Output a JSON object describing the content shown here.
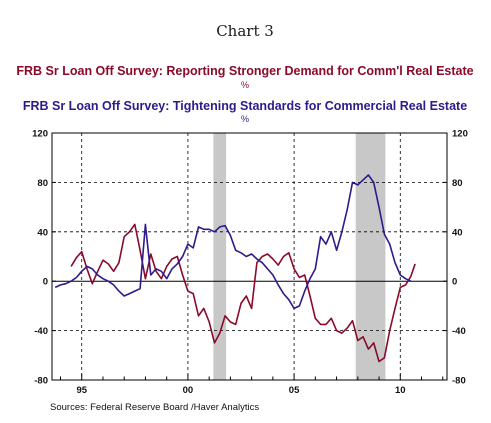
{
  "chart_data": {
    "type": "line",
    "title": "Chart 3",
    "source": "Sources:  Federal Reserve Board /Haver Analytics",
    "ylim": [
      -80,
      120
    ],
    "xlim": [
      1993.6,
      2012.2
    ],
    "yticks": [
      -80,
      -40,
      0,
      40,
      80,
      120
    ],
    "ytick_labels": [
      "-80",
      "-40",
      "0",
      "40",
      "80",
      "120"
    ],
    "xticks": [
      1995,
      2000,
      2005,
      2010
    ],
    "xtick_labels": [
      "95",
      "00",
      "05",
      "10"
    ],
    "grid": true,
    "zero_line": true,
    "recessions": [
      [
        2001.2,
        2001.8
      ],
      [
        2007.9,
        2009.3
      ]
    ],
    "colors": {
      "demand": "#8b0a2a",
      "standards": "#2e1a8c",
      "recession": "#c8c8c8",
      "grid": "#000000"
    },
    "series": [
      {
        "name": "FRB Sr Loan Off Survey: Reporting Stronger Demand for Comm'l Real Estate",
        "unit": "%",
        "x": [
          1994.5,
          1994.75,
          1995.0,
          1995.25,
          1995.5,
          1995.75,
          1996.0,
          1996.25,
          1996.5,
          1996.75,
          1997.0,
          1997.25,
          1997.5,
          1997.75,
          1998.0,
          1998.25,
          1998.5,
          1998.75,
          1999.0,
          1999.25,
          1999.5,
          1999.75,
          2000.0,
          2000.25,
          2000.5,
          2000.75,
          2001.0,
          2001.25,
          2001.5,
          2001.75,
          2002.0,
          2002.25,
          2002.5,
          2002.75,
          2003.0,
          2003.25,
          2003.5,
          2003.75,
          2004.0,
          2004.25,
          2004.5,
          2004.75,
          2005.0,
          2005.25,
          2005.5,
          2005.75,
          2006.0,
          2006.25,
          2006.5,
          2006.75,
          2007.0,
          2007.25,
          2007.5,
          2007.75,
          2008.0,
          2008.25,
          2008.5,
          2008.75,
          2009.0,
          2009.25,
          2009.5,
          2009.75,
          2010.0,
          2010.25
        ],
        "values": [
          12,
          19,
          24,
          10,
          -2,
          8,
          17,
          14,
          8,
          15,
          36,
          40,
          46,
          25,
          2,
          22,
          8,
          2,
          12,
          18,
          20,
          5,
          -8,
          -10,
          -28,
          -22,
          -33,
          -50,
          -42,
          -28,
          -33,
          -35,
          -18,
          -12,
          -22,
          15,
          20,
          22,
          18,
          13,
          20,
          23,
          10,
          3,
          5,
          -12,
          -30,
          -35,
          -35,
          -30,
          -40,
          -42,
          -38,
          -32,
          -48,
          -45,
          -55,
          -50,
          -65,
          -62,
          -40,
          -22,
          -5,
          -3
        ],
        "tail": [
          [
            2010.5,
            4
          ],
          [
            2010.7,
            14
          ]
        ]
      },
      {
        "name": "FRB Sr Loan Off Survey: Tightening Standards for Commercial Real Estate",
        "unit": "%",
        "x": [
          1993.75,
          1994.0,
          1994.25,
          1994.5,
          1994.75,
          1995.0,
          1995.25,
          1995.5,
          1995.75,
          1996.0,
          1996.25,
          1996.5,
          1996.75,
          1997.0,
          1997.25,
          1997.5,
          1997.75,
          1998.0,
          1998.25,
          1998.5,
          1998.75,
          1999.0,
          1999.25,
          1999.5,
          1999.75,
          2000.0,
          2000.25,
          2000.5,
          2000.75,
          2001.0,
          2001.25,
          2001.5,
          2001.75,
          2002.0,
          2002.25,
          2002.5,
          2002.75,
          2003.0,
          2003.25,
          2003.5,
          2003.75,
          2004.0,
          2004.25,
          2004.5,
          2004.75,
          2005.0,
          2005.25,
          2005.5,
          2005.75,
          2006.0,
          2006.25,
          2006.5,
          2006.75,
          2007.0,
          2007.25,
          2007.5,
          2007.75,
          2008.0,
          2008.25,
          2008.5,
          2008.75,
          2009.0,
          2009.25,
          2009.5,
          2009.75,
          2010.0,
          2010.25
        ],
        "values": [
          -5,
          -3,
          -2,
          0,
          3,
          8,
          12,
          10,
          5,
          2,
          0,
          -3,
          -8,
          -12,
          -10,
          -8,
          -6,
          46,
          5,
          10,
          8,
          2,
          10,
          14,
          20,
          30,
          27,
          44,
          42,
          42,
          40,
          44,
          45,
          37,
          25,
          23,
          20,
          22,
          18,
          15,
          10,
          5,
          -3,
          -10,
          -15,
          -22,
          -20,
          -8,
          2,
          10,
          36,
          30,
          40,
          25,
          40,
          58,
          80,
          78,
          82,
          86,
          80,
          60,
          38,
          30,
          15,
          5,
          2
        ],
        "tail": [
          [
            2010.5,
            0
          ]
        ]
      }
    ]
  }
}
